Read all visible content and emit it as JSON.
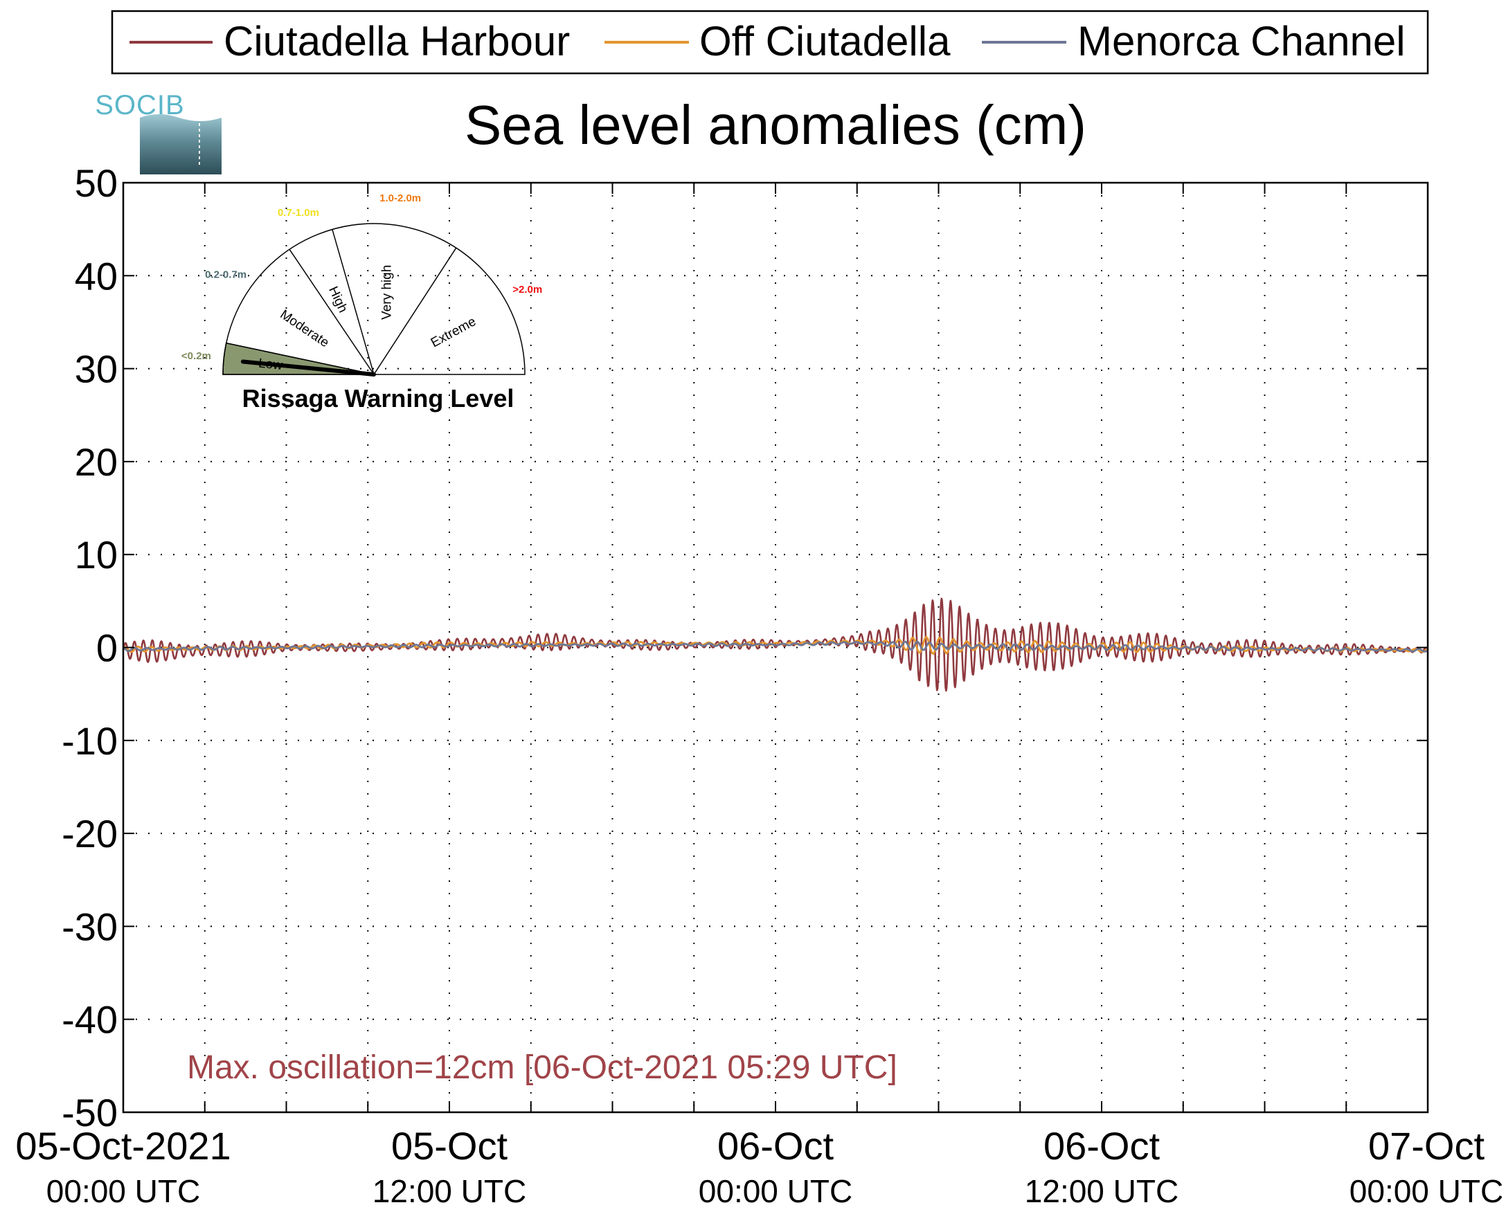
{
  "chart_data": {
    "type": "line",
    "title": "Sea level anomalies (cm)",
    "xlabel": "",
    "ylabel": "",
    "ylim": [
      -50,
      50
    ],
    "yticks": [
      50,
      40,
      30,
      20,
      10,
      0,
      -10,
      -20,
      -30,
      -40,
      -50
    ],
    "xlim": [
      "2021-10-05 00:00",
      "2021-10-07 00:00"
    ],
    "xtick_hours": [
      0,
      12,
      24,
      36,
      48
    ],
    "xticks": [
      {
        "date": "05-Oct-2021",
        "time": "00:00 UTC"
      },
      {
        "date": "05-Oct",
        "time": "12:00 UTC"
      },
      {
        "date": "06-Oct",
        "time": "00:00 UTC"
      },
      {
        "date": "06-Oct",
        "time": "12:00 UTC"
      },
      {
        "date": "07-Oct",
        "time": "00:00 UTC"
      }
    ],
    "grid": true,
    "legend_position": "top",
    "series": [
      {
        "name": "Ciutadella Harbour",
        "color": "#8f3a3f",
        "envelope": {
          "hours": [
            0,
            1,
            2,
            3,
            4,
            5,
            6,
            8,
            10,
            12,
            14,
            16,
            18,
            20,
            22,
            24,
            26,
            27,
            28,
            28.8,
            29.3,
            30,
            31,
            32,
            33,
            34,
            35,
            36,
            37,
            38,
            39,
            40,
            42,
            44,
            46,
            48
          ],
          "mean": [
            -0.3,
            -0.4,
            -0.4,
            -0.3,
            -0.2,
            -0.1,
            0,
            0,
            0.1,
            0.3,
            0.5,
            0.6,
            0.4,
            0.2,
            0.3,
            0.4,
            0.6,
            0.7,
            0.6,
            0.5,
            0.4,
            0.3,
            0.2,
            0.2,
            0.1,
            0.1,
            0.1,
            0.1,
            0,
            0,
            0,
            -0.1,
            -0.1,
            -0.2,
            -0.2,
            -0.3
          ],
          "amplitude": [
            1,
            1.2,
            1.1,
            1,
            0.9,
            0.8,
            0.6,
            0.4,
            0.5,
            0.6,
            0.9,
            0.9,
            0.6,
            0.5,
            0.5,
            0.5,
            0.4,
            0.6,
            2,
            5,
            6.3,
            5.4,
            4,
            3.6,
            3.2,
            2.6,
            2.5,
            2,
            1.7,
            1.5,
            1.2,
            1,
            0.9,
            0.7,
            0.5,
            0.4
          ]
        }
      },
      {
        "name": "Off Ciutadella",
        "color": "#e3952f",
        "envelope": {
          "hours": [
            0,
            6,
            12,
            18,
            24,
            27,
            28,
            29,
            30,
            32,
            34,
            36,
            38,
            40,
            44,
            48
          ],
          "mean": [
            -0.2,
            0,
            0.3,
            0.4,
            0.4,
            0.6,
            0.5,
            0.3,
            0.2,
            0.1,
            0.1,
            0.1,
            0,
            -0.1,
            -0.2,
            -0.3
          ],
          "amplitude": [
            0.3,
            0.2,
            0.3,
            0.2,
            0.2,
            0.2,
            0.5,
            1,
            0.9,
            0.7,
            0.6,
            0.6,
            0.5,
            0.3,
            0.2,
            0.2
          ]
        }
      },
      {
        "name": "Menorca Channel",
        "color": "#6d7794",
        "envelope": {
          "hours": [
            0,
            6,
            12,
            18,
            24,
            27,
            28,
            29,
            30,
            32,
            34,
            36,
            38,
            40,
            44,
            48
          ],
          "mean": [
            -0.2,
            0,
            0.2,
            0.3,
            0.3,
            0.5,
            0.4,
            0.2,
            0.1,
            0.1,
            0,
            0,
            0,
            -0.1,
            -0.2,
            -0.3
          ],
          "amplitude": [
            0.2,
            0.15,
            0.15,
            0.15,
            0.15,
            0.15,
            0.3,
            0.5,
            0.4,
            0.35,
            0.3,
            0.3,
            0.25,
            0.2,
            0.15,
            0.15
          ]
        }
      }
    ],
    "annotations": [
      {
        "text": "Max. oscillation=12cm [06-Oct-2021 05:29 UTC]",
        "color": "#a04449"
      }
    ]
  },
  "logo": {
    "text": "SOCIB"
  },
  "gauge": {
    "title": "Rissaga Warning Level",
    "current_level": "Low",
    "needle_fraction": 0.02,
    "levels": [
      {
        "name": "Low",
        "range": "<0.2m",
        "color": "#7c8a5c"
      },
      {
        "name": "Moderate",
        "range": "0.2-0.7m",
        "color": "#4c6b70"
      },
      {
        "name": "High",
        "range": "0.7-1.0m",
        "color": "#efe020"
      },
      {
        "name": "Very high",
        "range": "1.0-2.0m",
        "color": "#ee7a12"
      },
      {
        "name": "Extreme",
        "range": ">2.0m",
        "color": "#ee1111"
      }
    ]
  },
  "colors": {
    "axis": "#000000",
    "grid": "#000000",
    "gauge_fill": "#8a9870"
  }
}
